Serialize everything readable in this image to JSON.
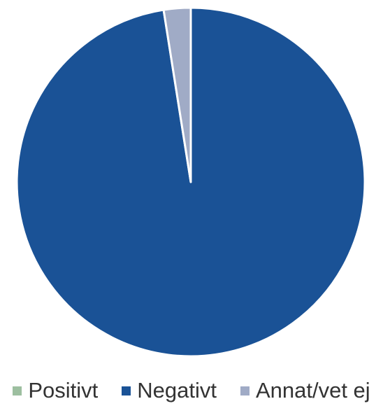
{
  "chart_data": {
    "type": "pie",
    "title": "",
    "categories": [
      "Positivt",
      "Negativt",
      "Annat/vet ej"
    ],
    "values": [
      0,
      97.5,
      2.5
    ],
    "unit": "%",
    "colors": [
      "#9dbfa0",
      "#1a5296",
      "#a0abc6"
    ],
    "start_angle_deg": 0,
    "direction": "clockwise",
    "legend_position": "bottom"
  },
  "legend": {
    "items": [
      {
        "label": "Positivt",
        "color": "#9dbfa0"
      },
      {
        "label": "Negativt",
        "color": "#1a5296"
      },
      {
        "label": "Annat/vet ej",
        "color": "#a0abc6"
      }
    ]
  }
}
